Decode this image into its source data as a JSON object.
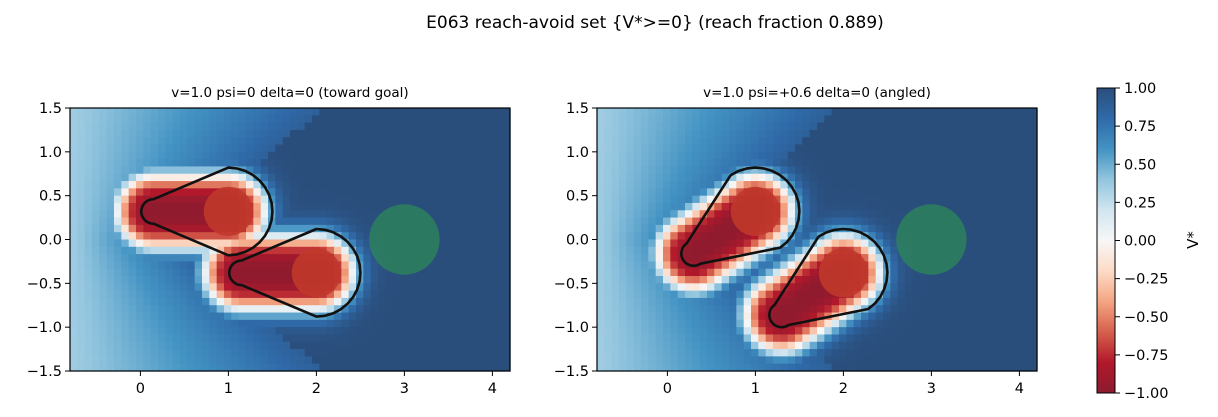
{
  "figure": {
    "title": "E063 reach-avoid set {V*>=0}  (reach fraction 0.889)"
  },
  "chart_data": [
    {
      "type": "heatmap",
      "title": "v=1.0  psi=0  delta=0  (toward goal)",
      "xlim": [
        -0.8,
        4.2
      ],
      "ylim": [
        -1.5,
        1.5
      ],
      "xticks": [
        "0",
        "1",
        "2",
        "3",
        "4"
      ],
      "yticks": [
        "1.5",
        "1.0",
        "0.5",
        "0.0",
        "−0.5",
        "−1.0",
        "−1.5"
      ],
      "psi": 0,
      "obstacles": [
        {
          "x": 1.0,
          "y": 0.32,
          "r": 0.28
        },
        {
          "x": 2.0,
          "y": -0.38,
          "r": 0.28
        }
      ],
      "goal": {
        "x": 3.0,
        "y": 0.0,
        "r": 0.4
      },
      "contour_level": 0
    },
    {
      "type": "heatmap",
      "title": "v=1.0  psi=+0.6  delta=0  (angled)",
      "xlim": [
        -0.8,
        4.2
      ],
      "ylim": [
        -1.5,
        1.5
      ],
      "xticks": [
        "0",
        "1",
        "2",
        "3",
        "4"
      ],
      "yticks": [
        "1.5",
        "1.0",
        "0.5",
        "0.0",
        "−0.5",
        "−1.0",
        "−1.5"
      ],
      "psi": 0.6,
      "obstacles": [
        {
          "x": 1.0,
          "y": 0.32,
          "r": 0.28
        },
        {
          "x": 2.0,
          "y": -0.38,
          "r": 0.28
        }
      ],
      "goal": {
        "x": 3.0,
        "y": 0.0,
        "r": 0.4
      },
      "contour_level": 0
    }
  ],
  "colorbar": {
    "label": "V*",
    "range": [
      -1.0,
      1.0
    ],
    "ticks": [
      "1.00",
      "0.75",
      "0.50",
      "0.25",
      "0.00",
      "−0.25",
      "−0.50",
      "−0.75",
      "−1.00"
    ],
    "colormap": "RdBu",
    "colors": [
      "#67001f",
      "#b2182b",
      "#d6604d",
      "#f4a582",
      "#fddbc7",
      "#f7f7f7",
      "#d1e5f0",
      "#92c5de",
      "#4393c3",
      "#2166ac",
      "#053061"
    ]
  },
  "style": {
    "goal_color": "#2e8b57",
    "obstacle_color": "#c0392b",
    "contour_color": "#111111"
  }
}
